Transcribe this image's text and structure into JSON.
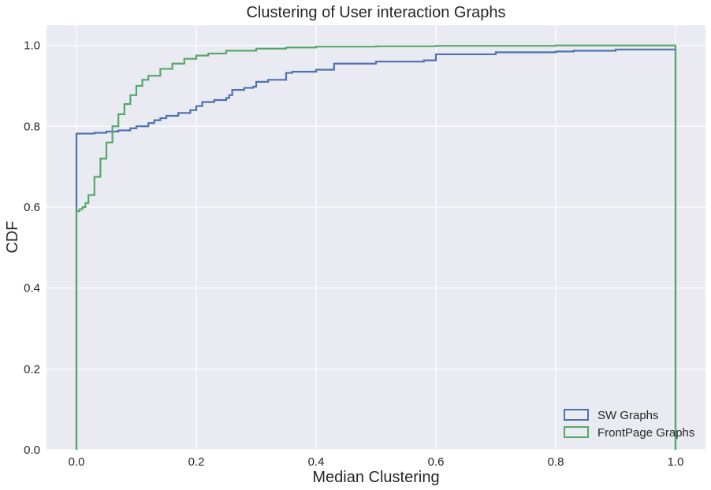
{
  "chart_data": {
    "type": "line",
    "title": "Clustering of User interaction Graphs",
    "xlabel": "Median Clustering",
    "ylabel": "CDF",
    "xlim": [
      -0.05,
      1.05
    ],
    "ylim": [
      0,
      1.05
    ],
    "xticks": [
      "0.0",
      "0.2",
      "0.4",
      "0.6",
      "0.8",
      "1.0"
    ],
    "yticks": [
      "0.0",
      "0.2",
      "0.4",
      "0.6",
      "0.8",
      "1.0"
    ],
    "grid": true,
    "legend_position": "bottom-right",
    "series": [
      {
        "name": "SW Graphs",
        "color": "#4c72b0",
        "step": true,
        "x": [
          0.0,
          0.0,
          0.03,
          0.05,
          0.07,
          0.09,
          0.1,
          0.12,
          0.13,
          0.14,
          0.15,
          0.17,
          0.19,
          0.2,
          0.21,
          0.23,
          0.25,
          0.255,
          0.26,
          0.28,
          0.295,
          0.3,
          0.32,
          0.35,
          0.36,
          0.4,
          0.43,
          0.5,
          0.58,
          0.6,
          0.7,
          0.8,
          0.83,
          0.9,
          0.99,
          1.0,
          1.0
        ],
        "y": [
          0.0,
          0.782,
          0.784,
          0.787,
          0.79,
          0.795,
          0.8,
          0.808,
          0.815,
          0.82,
          0.826,
          0.833,
          0.84,
          0.85,
          0.86,
          0.865,
          0.87,
          0.877,
          0.89,
          0.895,
          0.898,
          0.91,
          0.915,
          0.932,
          0.935,
          0.94,
          0.955,
          0.96,
          0.963,
          0.978,
          0.983,
          0.985,
          0.987,
          0.99,
          0.99,
          0.99,
          0.0
        ]
      },
      {
        "name": "FrontPage Graphs",
        "color": "#55a868",
        "step": true,
        "x": [
          0.0,
          0.0,
          0.005,
          0.01,
          0.015,
          0.02,
          0.03,
          0.04,
          0.05,
          0.06,
          0.07,
          0.08,
          0.09,
          0.1,
          0.11,
          0.12,
          0.14,
          0.16,
          0.18,
          0.2,
          0.22,
          0.25,
          0.3,
          0.35,
          0.4,
          0.5,
          0.6,
          0.8,
          0.99,
          1.0,
          1.0
        ],
        "y": [
          0.0,
          0.59,
          0.595,
          0.6,
          0.61,
          0.63,
          0.675,
          0.72,
          0.76,
          0.8,
          0.83,
          0.855,
          0.877,
          0.9,
          0.915,
          0.925,
          0.942,
          0.955,
          0.967,
          0.975,
          0.98,
          0.987,
          0.992,
          0.995,
          0.997,
          0.998,
          0.999,
          1.0,
          1.0,
          1.0,
          0.0
        ]
      }
    ]
  }
}
